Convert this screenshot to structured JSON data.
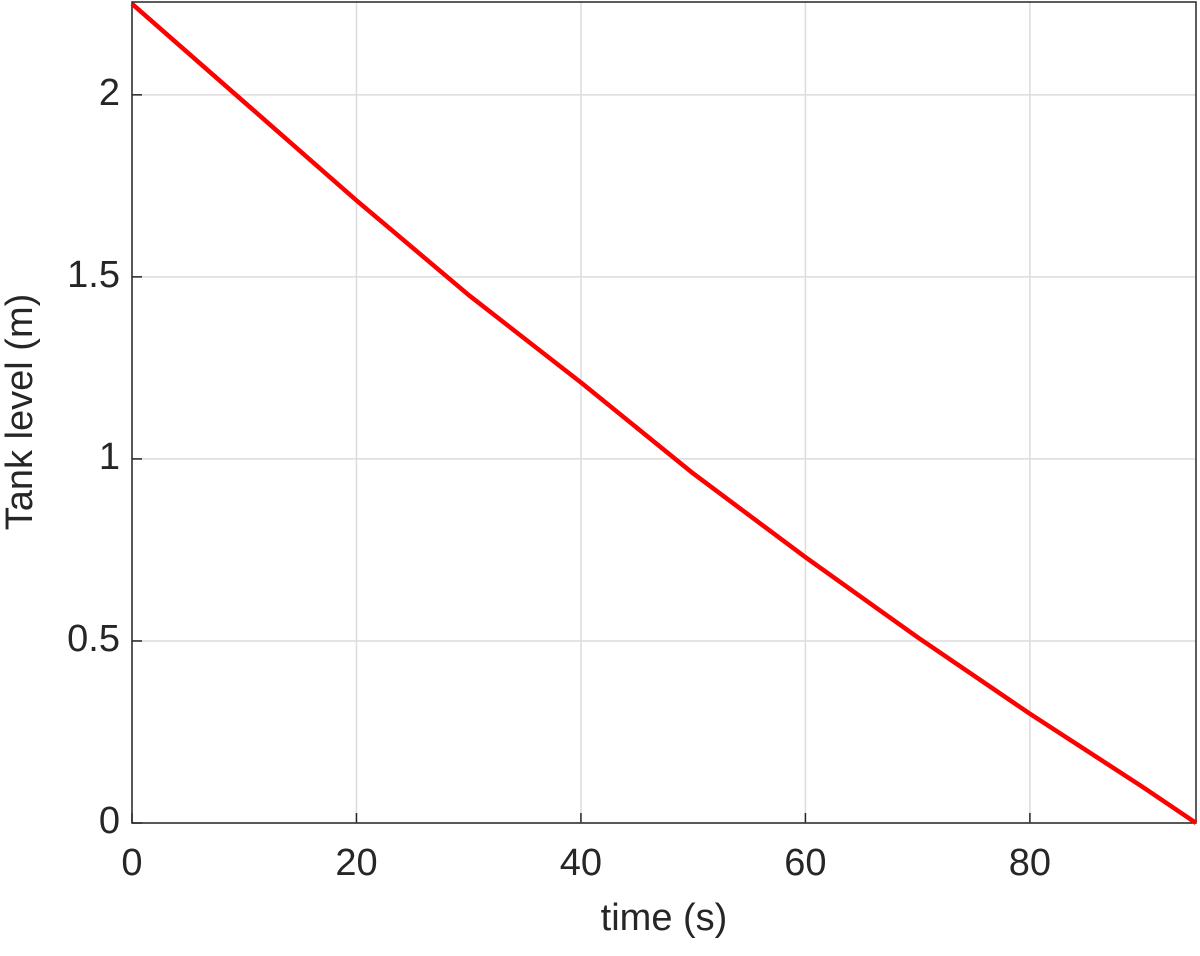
{
  "chart_data": {
    "type": "line",
    "x_label": "time (s)",
    "y_label": "Tank level (m)",
    "x": [
      0,
      10,
      20,
      30,
      40,
      50,
      60,
      70,
      80,
      90,
      94.8
    ],
    "series": [
      {
        "name": "Tank level",
        "color": "#ff0000",
        "values": [
          2.25,
          1.98,
          1.71,
          1.45,
          1.21,
          0.96,
          0.73,
          0.51,
          0.3,
          0.1,
          0
        ]
      }
    ],
    "xlim": [
      0,
      94.8
    ],
    "xticks": [
      0,
      20,
      40,
      60,
      80
    ],
    "ylim": [
      0,
      2.255
    ],
    "yticks": [
      0,
      0.5,
      1,
      1.5,
      2
    ],
    "grid": true
  }
}
